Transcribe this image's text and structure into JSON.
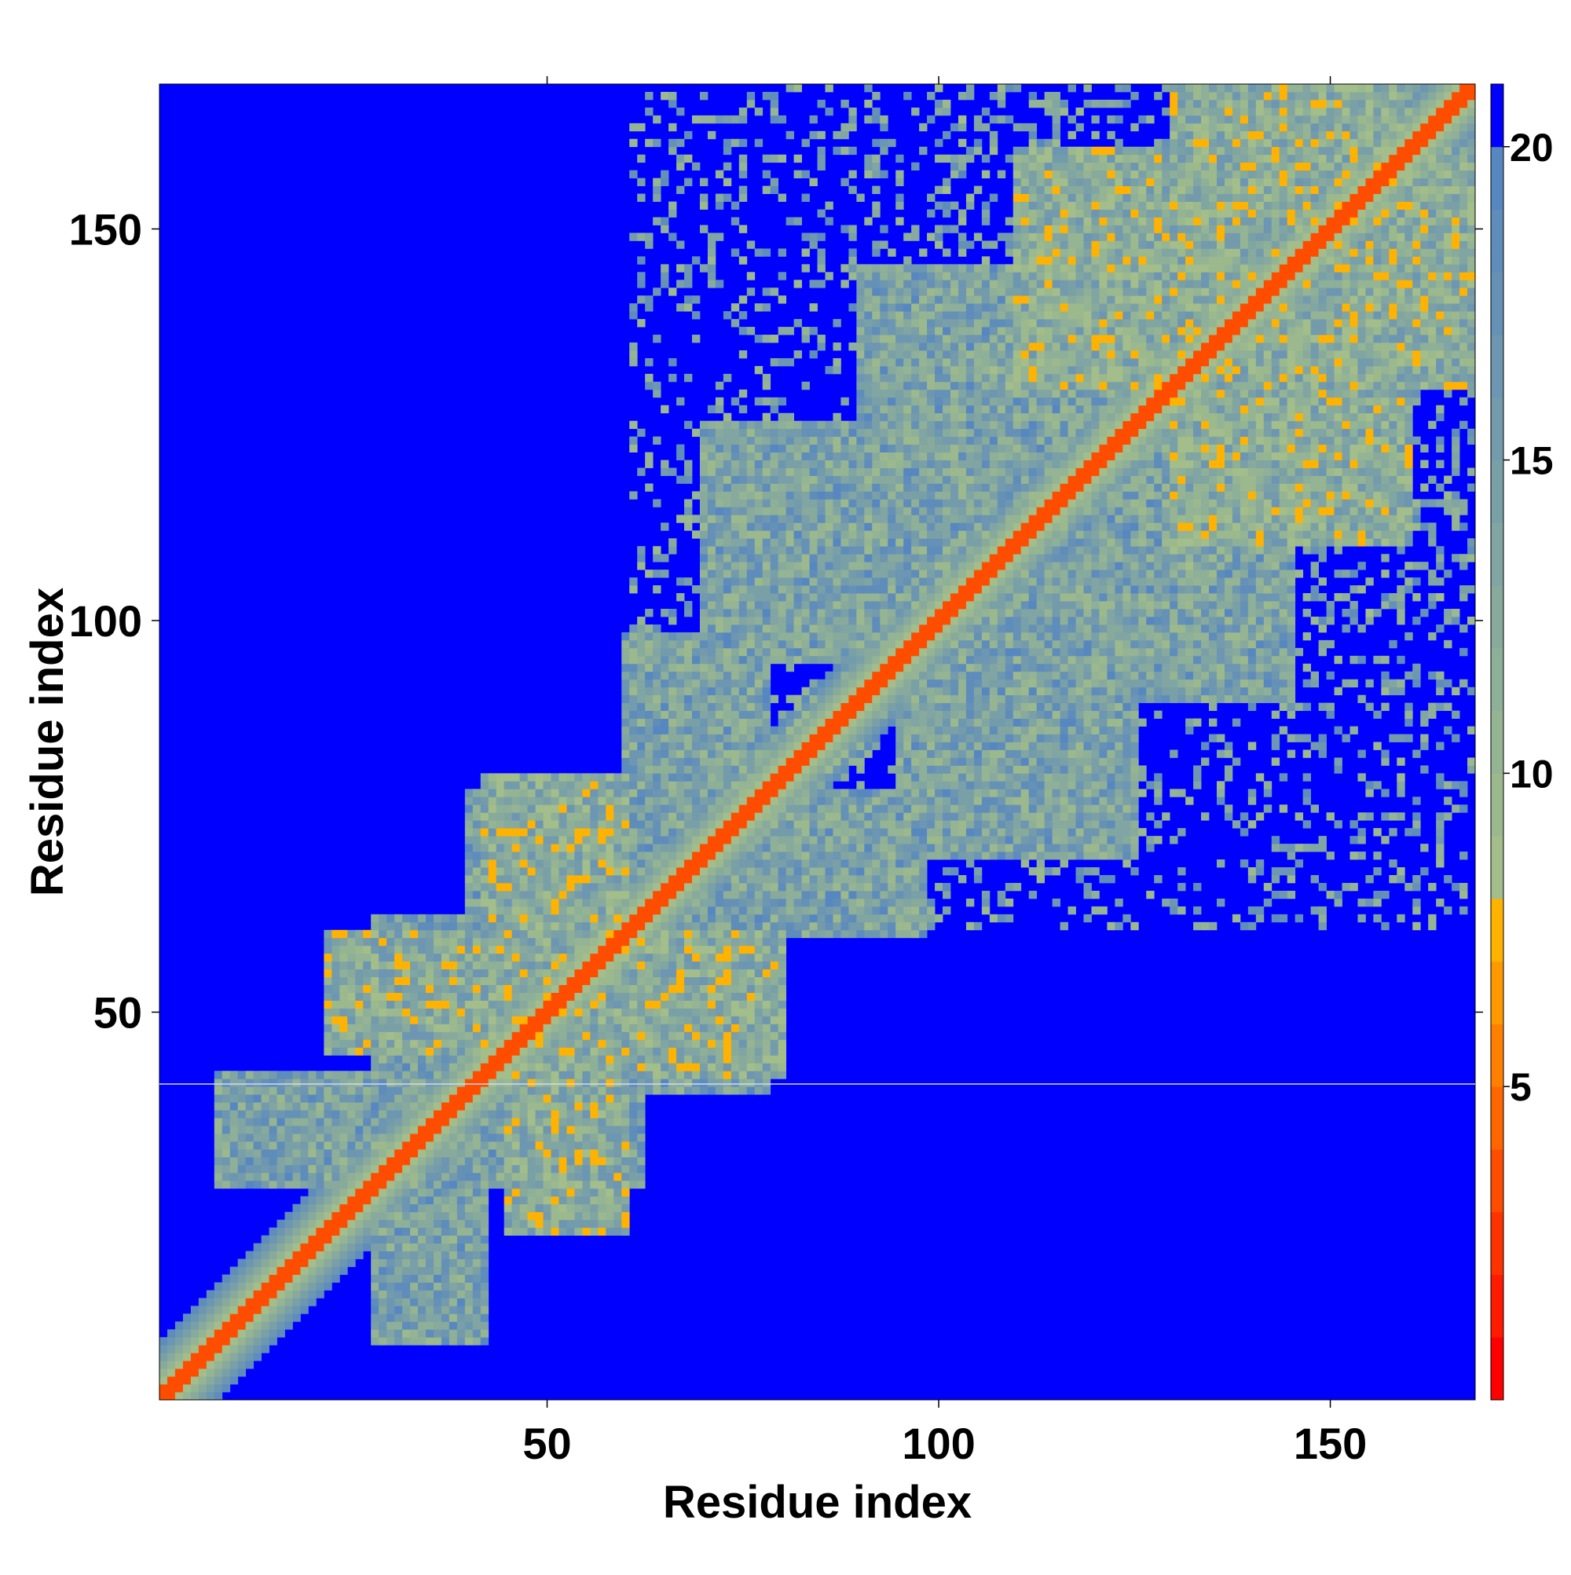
{
  "chart_data": {
    "type": "heatmap",
    "title": "",
    "xlabel": "Residue index",
    "ylabel": "Residue index",
    "x_range": [
      1,
      168
    ],
    "y_range": [
      1,
      168
    ],
    "x_ticks": [
      50,
      100,
      150
    ],
    "y_ticks": [
      50,
      100,
      150
    ],
    "colorbar": {
      "range": [
        0,
        21
      ],
      "ticks": [
        5,
        10,
        15,
        20
      ],
      "above_max_label": "> 20",
      "levels": [
        {
          "from": 0,
          "to": 1,
          "color": "#FF0000"
        },
        {
          "from": 1,
          "to": 2,
          "color": "#FF1A00"
        },
        {
          "from": 2,
          "to": 3,
          "color": "#FF3300"
        },
        {
          "from": 3,
          "to": 4,
          "color": "#FF4D00"
        },
        {
          "from": 4,
          "to": 5,
          "color": "#FF6600"
        },
        {
          "from": 5,
          "to": 6,
          "color": "#FF8000"
        },
        {
          "from": 6,
          "to": 7,
          "color": "#FF9900"
        },
        {
          "from": 7,
          "to": 8,
          "color": "#FFB300"
        },
        {
          "from": 8,
          "to": 9,
          "color": "#A3BE8A"
        },
        {
          "from": 9,
          "to": 10,
          "color": "#9CB98E"
        },
        {
          "from": 10,
          "to": 11,
          "color": "#95B493"
        },
        {
          "from": 11,
          "to": 12,
          "color": "#8EAF98"
        },
        {
          "from": 12,
          "to": 13,
          "color": "#87AA9D"
        },
        {
          "from": 13,
          "to": 14,
          "color": "#80A5A2"
        },
        {
          "from": 14,
          "to": 15,
          "color": "#7AA0A7"
        },
        {
          "from": 15,
          "to": 16,
          "color": "#739BAC"
        },
        {
          "from": 16,
          "to": 17,
          "color": "#6C96B1"
        },
        {
          "from": 17,
          "to": 18,
          "color": "#6591B6"
        },
        {
          "from": 18,
          "to": 19,
          "color": "#5E8CBB"
        },
        {
          "from": 19,
          "to": 20,
          "color": "#5787C0"
        },
        {
          "from": 20,
          "to": 21,
          "color": "#0000FF"
        }
      ]
    },
    "background_color": "#0000FF",
    "description_values": {
      "diagonal": {
        "from": 1,
        "to": 168,
        "distance_at_diagonal": 3.8
      },
      "contact_clusters": [
        {
          "x": [
            28,
            42
          ],
          "y": [
            28,
            42
          ],
          "level": "medium"
        },
        {
          "x": [
            42,
            60
          ],
          "y": [
            45,
            60
          ],
          "level": "strong"
        },
        {
          "x": [
            60,
            78
          ],
          "y": [
            60,
            78
          ],
          "level": "medium"
        },
        {
          "x": [
            90,
            125
          ],
          "y": [
            95,
            125
          ],
          "level": "medium"
        },
        {
          "x": [
            130,
            160
          ],
          "y": [
            130,
            160
          ],
          "level": "strong"
        }
      ]
    }
  }
}
